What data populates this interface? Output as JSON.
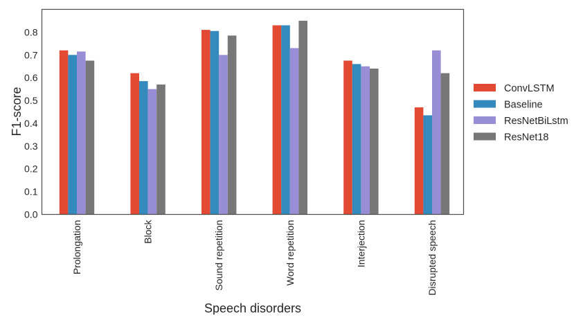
{
  "chart_data": {
    "type": "bar",
    "title": "",
    "xlabel": "Speech disorders",
    "ylabel": "F1-score",
    "ylim": [
      0,
      0.9
    ],
    "yticks": [
      "0.0",
      "0.1",
      "0.2",
      "0.3",
      "0.4",
      "0.5",
      "0.6",
      "0.7",
      "0.8"
    ],
    "grid": false,
    "legend_position": "right",
    "categories": [
      "Prolongation",
      "Block",
      "Sound repetition",
      "Word repetition",
      "Interjection",
      "Disrupted speech"
    ],
    "series": [
      {
        "name": "ConvLSTM",
        "color": "#e24a33",
        "values": [
          0.72,
          0.62,
          0.81,
          0.83,
          0.675,
          0.47
        ]
      },
      {
        "name": "Baseline",
        "color": "#348abd",
        "values": [
          0.7,
          0.585,
          0.805,
          0.83,
          0.66,
          0.435
        ]
      },
      {
        "name": "ResNetBiLstm",
        "color": "#988ed5",
        "values": [
          0.715,
          0.55,
          0.7,
          0.73,
          0.65,
          0.72
        ]
      },
      {
        "name": "ResNet18",
        "color": "#777777",
        "values": [
          0.675,
          0.57,
          0.785,
          0.85,
          0.64,
          0.62
        ]
      }
    ]
  }
}
